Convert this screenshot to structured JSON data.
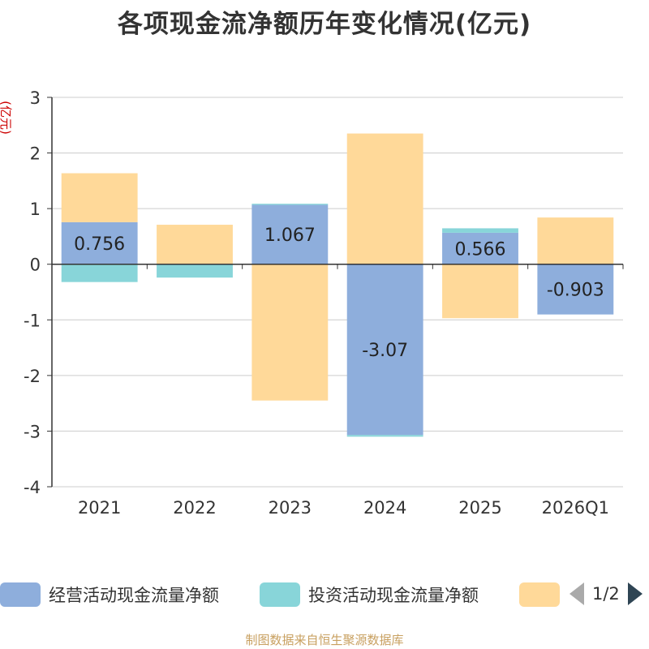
{
  "chart_data": {
    "type": "bar",
    "stacked": true,
    "title": "各项现金流净额历年变化情况(亿元)",
    "ylabel": "(亿元)",
    "ylim": [
      -4,
      3
    ],
    "yticks": [
      3,
      2,
      1,
      0,
      -1,
      -2,
      -3,
      -4
    ],
    "grid": true,
    "legend_position": "bottom",
    "categories": [
      "2021",
      "2022",
      "2023",
      "2024",
      "2025",
      "2026Q1"
    ],
    "series": [
      {
        "name": "经营活动现金流量净额",
        "color": "#8eaedc",
        "values": [
          0.756,
          0.0,
          1.067,
          -3.07,
          0.566,
          -0.903
        ]
      },
      {
        "name": "投资活动现金流量净额",
        "color": "#88d5d9",
        "values": [
          -0.32,
          -0.24,
          0.02,
          -0.03,
          0.08,
          0.0
        ]
      },
      {
        "name": "",
        "color": "#ffd999",
        "values": [
          0.88,
          0.71,
          -2.45,
          2.35,
          -0.97,
          0.84
        ]
      }
    ],
    "data_labels": [
      "0.756",
      "",
      "1.067",
      "-3.07",
      "0.566",
      "-0.903"
    ]
  },
  "legend": {
    "items": [
      {
        "label": "经营活动现金流量净额",
        "color": "#8eaedc"
      },
      {
        "label": "投资活动现金流量净额",
        "color": "#88d5d9"
      },
      {
        "label": "",
        "color": "#ffd999"
      }
    ],
    "page": "1/2"
  },
  "source": "制图数据来自恒生聚源数据库"
}
